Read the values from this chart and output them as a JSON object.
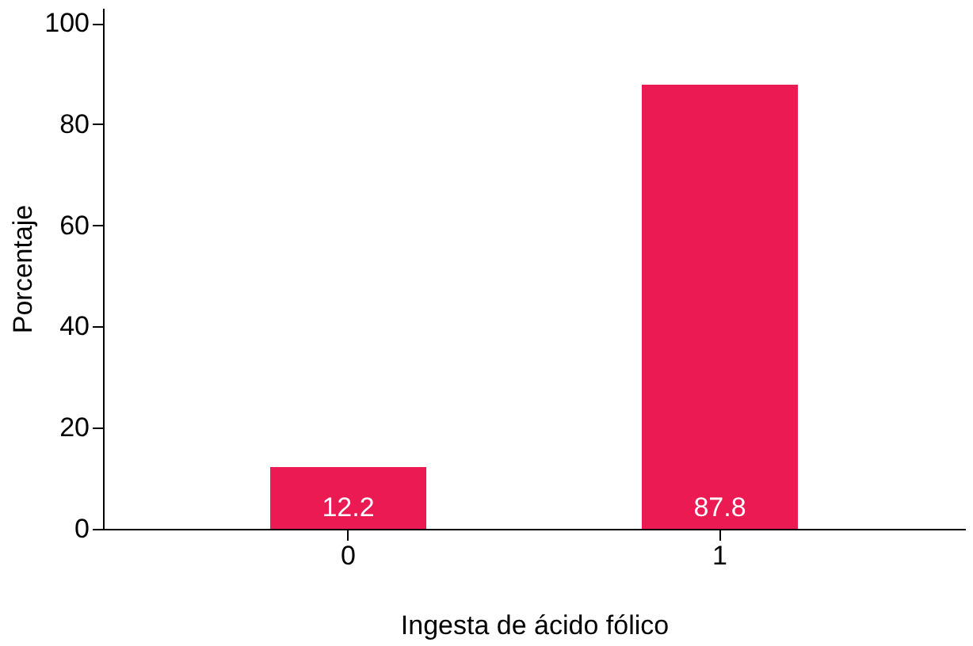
{
  "chart_data": {
    "type": "bar",
    "xlabel": "Ingesta de ácido fólico",
    "ylabel": "Porcentaje",
    "categories": [
      "0",
      "1"
    ],
    "values": [
      12.2,
      87.8
    ],
    "color": "#ec1a52",
    "ylim": [
      0,
      103
    ],
    "yticks": [
      0,
      20,
      40,
      60,
      80,
      100
    ],
    "grid": false,
    "data_labels": true
  }
}
